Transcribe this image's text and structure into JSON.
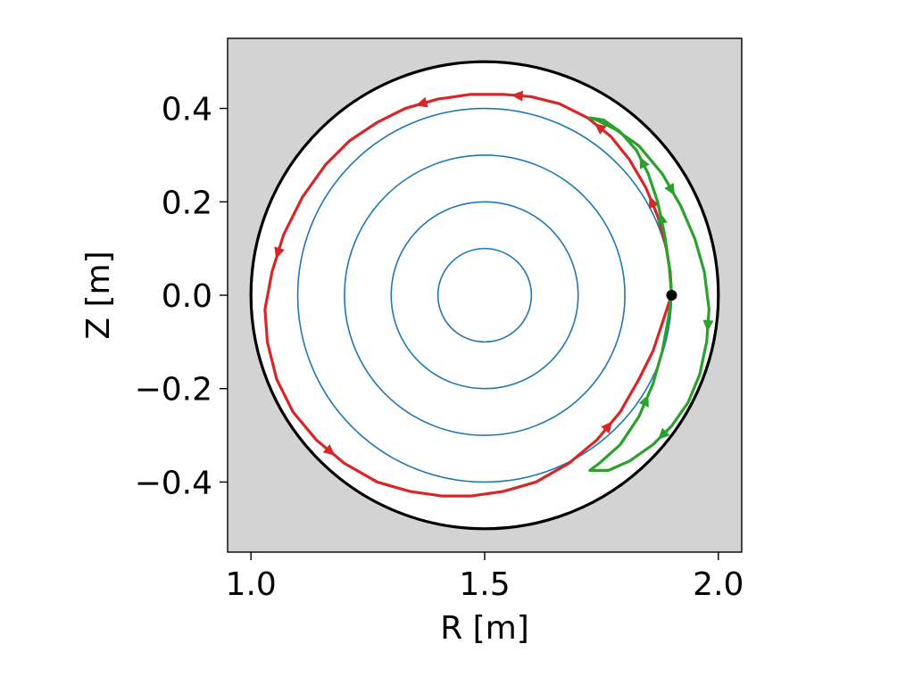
{
  "chart_data": {
    "type": "line",
    "title": "",
    "xlabel": "R [m]",
    "ylabel": "Z [m]",
    "xlim": [
      0.95,
      2.05
    ],
    "ylim": [
      -0.55,
      0.55
    ],
    "xticks": [
      1.0,
      1.5,
      2.0
    ],
    "xtick_labels": [
      "1.0",
      "1.5",
      "2.0"
    ],
    "yticks": [
      -0.4,
      -0.2,
      0.0,
      0.2,
      0.4
    ],
    "ytick_labels": [
      "−0.4",
      "−0.2",
      "0.0",
      "0.2",
      "0.4"
    ],
    "grid": false,
    "legend": "none",
    "axes_background": "#d3d3d3",
    "wall": {
      "center": [
        1.5,
        0.0
      ],
      "radius": 0.5,
      "fill": "#ffffff",
      "color": "#000000"
    },
    "flux_surfaces": {
      "center": [
        1.5,
        0.0
      ],
      "radii": [
        0.1,
        0.2,
        0.3,
        0.4
      ],
      "color": "#1f77b4"
    },
    "start_point": {
      "R": 1.9,
      "Z": 0.0,
      "color": "#000000"
    },
    "series": [
      {
        "color": "#d62728",
        "R": [
          1.9,
          1.897,
          1.887,
          1.87,
          1.845,
          1.81,
          1.77,
          1.72,
          1.66,
          1.6,
          1.54,
          1.47,
          1.4,
          1.33,
          1.27,
          1.21,
          1.16,
          1.11,
          1.07,
          1.045,
          1.03,
          1.035,
          1.055,
          1.09,
          1.14,
          1.2,
          1.27,
          1.34,
          1.41,
          1.47,
          1.54,
          1.61,
          1.68,
          1.74,
          1.79,
          1.83,
          1.86,
          1.88,
          1.893,
          1.9
        ],
        "Z": [
          0.0,
          0.05,
          0.11,
          0.17,
          0.23,
          0.29,
          0.34,
          0.38,
          0.41,
          0.425,
          0.43,
          0.43,
          0.42,
          0.4,
          0.37,
          0.33,
          0.28,
          0.21,
          0.13,
          0.05,
          -0.03,
          -0.1,
          -0.18,
          -0.25,
          -0.31,
          -0.36,
          -0.4,
          -0.42,
          -0.43,
          -0.43,
          -0.42,
          -0.4,
          -0.36,
          -0.31,
          -0.25,
          -0.18,
          -0.12,
          -0.06,
          -0.02,
          0.0
        ],
        "arrows_at": [
          12,
          6,
          3,
          18,
          24,
          9,
          33
        ]
      },
      {
        "color": "#2ca02c",
        "R": [
          1.9,
          1.895,
          1.885,
          1.87,
          1.85,
          1.825,
          1.79,
          1.755,
          1.725,
          1.74,
          1.78,
          1.83,
          1.88,
          1.92,
          1.95,
          1.97,
          1.98,
          1.975,
          1.96,
          1.935,
          1.9,
          1.86,
          1.81,
          1.765,
          1.725,
          1.745,
          1.79,
          1.83,
          1.86,
          1.88,
          1.893,
          1.9
        ],
        "Z": [
          0.0,
          0.06,
          0.13,
          0.2,
          0.26,
          0.31,
          0.35,
          0.375,
          0.38,
          0.375,
          0.355,
          0.32,
          0.26,
          0.19,
          0.12,
          0.05,
          -0.03,
          -0.1,
          -0.17,
          -0.23,
          -0.28,
          -0.32,
          -0.355,
          -0.375,
          -0.375,
          -0.36,
          -0.32,
          -0.26,
          -0.19,
          -0.12,
          -0.05,
          0.0
        ],
        "arrows_at": [
          2,
          4,
          12,
          16,
          20,
          27
        ]
      }
    ]
  }
}
